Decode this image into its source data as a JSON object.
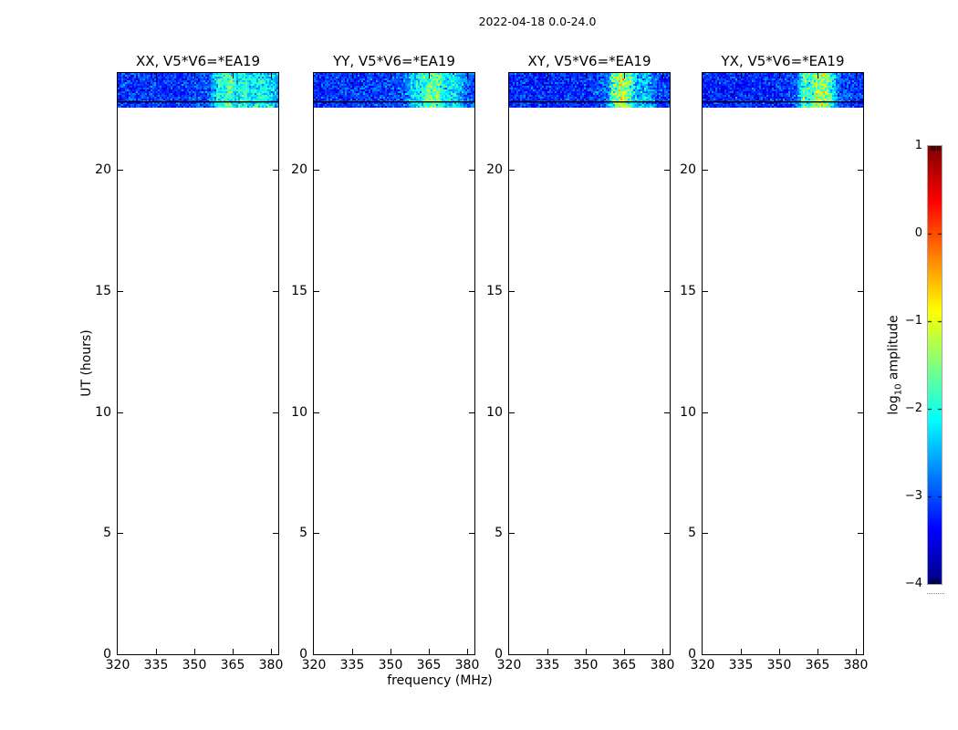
{
  "figure": {
    "title": "2022-04-18 0.0-24.0"
  },
  "axes": {
    "xlabel": "frequency (MHz)",
    "ylabel": "UT (hours)",
    "x_tick_labels": [
      "320",
      "335",
      "350",
      "365",
      "380"
    ],
    "x_tick_values": [
      320,
      335,
      350,
      365,
      380
    ],
    "y_tick_labels": [
      "0",
      "5",
      "10",
      "15",
      "20"
    ],
    "y_tick_values": [
      0,
      5,
      10,
      15,
      20
    ],
    "x_range": [
      320,
      383
    ],
    "y_range": [
      0,
      24
    ]
  },
  "panels": [
    {
      "title": "XX, V5*V6=*EA19"
    },
    {
      "title": "YY, V5*V6=*EA19"
    },
    {
      "title": "XY, V5*V6=*EA19"
    },
    {
      "title": "YX, V5*V6=*EA19"
    }
  ],
  "colorbar": {
    "label_prefix": "log",
    "label_sub": "10",
    "label_suffix": " amplitude",
    "tick_labels": [
      "1",
      "0",
      "−1",
      "−2",
      "−3",
      "−4"
    ],
    "tick_values": [
      1,
      0,
      -1,
      -2,
      -3,
      -4
    ],
    "range": [
      -4,
      1
    ],
    "colormap": "jet"
  },
  "chart_data": {
    "type": "heatmap",
    "title": "2022-04-18 0.0-24.0",
    "xlabel": "frequency (MHz)",
    "ylabel": "UT (hours)",
    "xlim": [
      320,
      383
    ],
    "ylim": [
      0,
      24
    ],
    "x_ticks": [
      320,
      335,
      350,
      365,
      380
    ],
    "y_ticks": [
      0,
      5,
      10,
      15,
      20
    ],
    "colorbar": {
      "label": "log10 amplitude",
      "lim": [
        -4,
        1
      ],
      "ticks": [
        1,
        0,
        -1,
        -2,
        -3,
        -4
      ],
      "colormap": "jet"
    },
    "panels": [
      {
        "title": "XX, V5*V6=*EA19",
        "coverage_ut_hours": [
          22.55,
          24.0
        ],
        "scan_boundary_ut": 22.8,
        "base_log10_amplitude": -3.15,
        "noise_sigma": 0.27,
        "bright_streaks_mhz": [
          {
            "center": 360,
            "width": 2.0,
            "boost": 0.75
          },
          {
            "center": 364,
            "width": 1.6,
            "boost": 1.0
          },
          {
            "center": 369,
            "width": 1.8,
            "boost": 0.85
          },
          {
            "center": 375,
            "width": 2.5,
            "boost": 0.7
          },
          {
            "center": 380,
            "width": 2.5,
            "boost": 0.55
          },
          {
            "center": 370,
            "width": 12.0,
            "boost": 0.35
          }
        ]
      },
      {
        "title": "YY, V5*V6=*EA19",
        "coverage_ut_hours": [
          22.55,
          24.0
        ],
        "scan_boundary_ut": 22.8,
        "base_log10_amplitude": -3.15,
        "noise_sigma": 0.27,
        "bright_streaks_mhz": [
          {
            "center": 359,
            "width": 1.8,
            "boost": 0.6
          },
          {
            "center": 363,
            "width": 1.6,
            "boost": 0.75
          },
          {
            "center": 366,
            "width": 1.6,
            "boost": 0.8
          },
          {
            "center": 369,
            "width": 1.8,
            "boost": 0.95
          },
          {
            "center": 375,
            "width": 2.5,
            "boost": 0.7
          },
          {
            "center": 367,
            "width": 12.0,
            "boost": 0.3
          }
        ]
      },
      {
        "title": "XY, V5*V6=*EA19",
        "coverage_ut_hours": [
          22.55,
          24.0
        ],
        "scan_boundary_ut": 22.8,
        "base_log10_amplitude": -3.2,
        "noise_sigma": 0.27,
        "bright_streaks_mhz": [
          {
            "center": 361,
            "width": 1.4,
            "boost": 1.15
          },
          {
            "center": 364,
            "width": 1.4,
            "boost": 1.3
          },
          {
            "center": 367,
            "width": 1.6,
            "boost": 1.0
          },
          {
            "center": 373,
            "width": 3.0,
            "boost": 0.5
          },
          {
            "center": 366,
            "width": 9.0,
            "boost": 0.35
          }
        ]
      },
      {
        "title": "YX, V5*V6=*EA19",
        "coverage_ut_hours": [
          22.55,
          24.0
        ],
        "scan_boundary_ut": 22.8,
        "base_log10_amplitude": -3.2,
        "noise_sigma": 0.27,
        "bright_streaks_mhz": [
          {
            "center": 360,
            "width": 1.4,
            "boost": 1.1
          },
          {
            "center": 364,
            "width": 1.4,
            "boost": 1.2
          },
          {
            "center": 367,
            "width": 1.4,
            "boost": 1.2
          },
          {
            "center": 370,
            "width": 1.8,
            "boost": 0.9
          },
          {
            "center": 366,
            "width": 8.0,
            "boost": 0.4
          }
        ]
      }
    ]
  }
}
